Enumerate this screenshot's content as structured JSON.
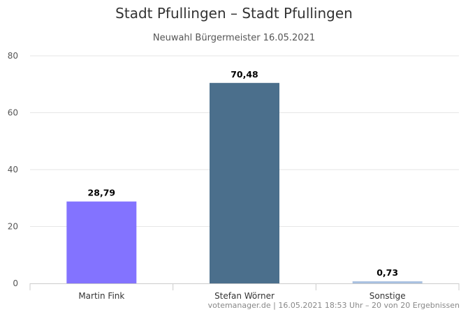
{
  "chart_data": {
    "type": "bar",
    "title": "Stadt Pfullingen – Stadt Pfullingen",
    "subtitle": "Neuwahl Bürgermeister 16.05.2021",
    "categories": [
      "Martin Fink",
      "Stefan Wörner",
      "Sonstige"
    ],
    "values": [
      28.79,
      70.48,
      0.73
    ],
    "value_labels": [
      "28,79",
      "70,48",
      "0,73"
    ],
    "colors": [
      "#8373ff",
      "#4b6f8c",
      "#a9c1e0"
    ],
    "ylim": [
      0,
      80
    ],
    "yticks": [
      0,
      20,
      40,
      60,
      80
    ],
    "grid": true,
    "legend": "none",
    "xlabel": "",
    "ylabel": ""
  },
  "credits": "votemanager.de | 16.05.2021 18:53 Uhr – 20 von 20 Ergebnissen"
}
